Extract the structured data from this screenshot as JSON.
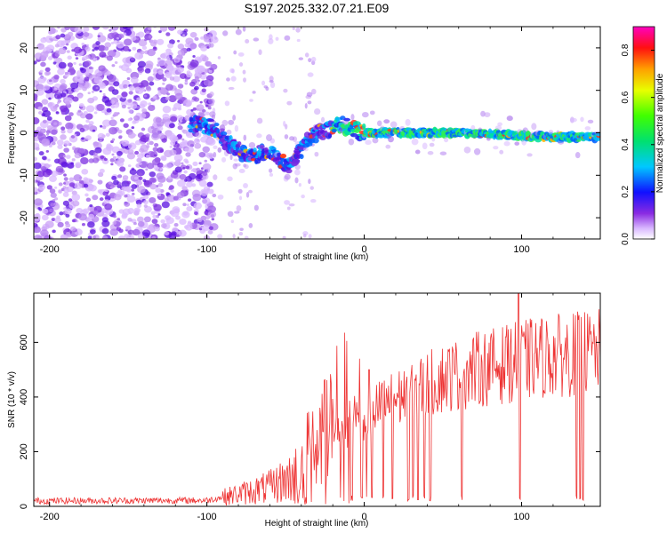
{
  "title": "S197.2025.332.07.21.E09",
  "chart_data": [
    {
      "id": "spectrogram",
      "type": "heatmap",
      "xlabel": "Height of straight line (km)",
      "ylabel": "Frequency (Hz)",
      "xlim": [
        -210,
        150
      ],
      "ylim": [
        -25,
        25
      ],
      "xticks": [
        -200,
        -100,
        0,
        100
      ],
      "yticks": [
        -20,
        -10,
        0,
        10,
        20
      ],
      "ridge": [
        {
          "x": -105,
          "y": 2
        },
        {
          "x": -95,
          "y": 1
        },
        {
          "x": -88,
          "y": -2
        },
        {
          "x": -80,
          "y": -4
        },
        {
          "x": -72,
          "y": -6
        },
        {
          "x": -62,
          "y": -4
        },
        {
          "x": -55,
          "y": -6
        },
        {
          "x": -48,
          "y": -8
        },
        {
          "x": -42,
          "y": -5
        },
        {
          "x": -36,
          "y": -2
        },
        {
          "x": -30,
          "y": 0
        },
        {
          "x": -22,
          "y": 1
        },
        {
          "x": -15,
          "y": 2
        },
        {
          "x": -8,
          "y": 1
        },
        {
          "x": 0,
          "y": 0
        },
        {
          "x": 10,
          "y": 0
        },
        {
          "x": 30,
          "y": 0
        },
        {
          "x": 60,
          "y": 0
        },
        {
          "x": 90,
          "y": -0.5
        },
        {
          "x": 120,
          "y": -1
        },
        {
          "x": 150,
          "y": -1
        }
      ],
      "colorbar": {
        "label": "Normalized spectral amplitude",
        "range": [
          0.0,
          0.9
        ],
        "ticks": [
          0.0,
          0.2,
          0.4,
          0.6,
          0.8
        ]
      }
    },
    {
      "id": "snr",
      "type": "line",
      "xlabel": "Height of straight line (km)",
      "ylabel": "SNR (10 * v/v)",
      "xlim": [
        -210,
        150
      ],
      "ylim": [
        0,
        780
      ],
      "xticks": [
        -200,
        -100,
        0,
        100
      ],
      "yticks": [
        0,
        200,
        400,
        600
      ],
      "color": "#ee3333",
      "trend": [
        {
          "x": -210,
          "y": 20
        },
        {
          "x": -100,
          "y": 22
        },
        {
          "x": -80,
          "y": 45
        },
        {
          "x": -60,
          "y": 70
        },
        {
          "x": -45,
          "y": 110
        },
        {
          "x": -35,
          "y": 190
        },
        {
          "x": -25,
          "y": 250
        },
        {
          "x": -10,
          "y": 300
        },
        {
          "x": 0,
          "y": 330
        },
        {
          "x": 15,
          "y": 380
        },
        {
          "x": 30,
          "y": 420
        },
        {
          "x": 50,
          "y": 470
        },
        {
          "x": 70,
          "y": 500
        },
        {
          "x": 90,
          "y": 520
        },
        {
          "x": 110,
          "y": 545
        },
        {
          "x": 130,
          "y": 555
        },
        {
          "x": 150,
          "y": 565
        }
      ],
      "dropouts": [
        -8,
        -2,
        5,
        12,
        18,
        28,
        31,
        34,
        38,
        42,
        62,
        99,
        135,
        137,
        139
      ],
      "spikes": [
        {
          "x": -3,
          "y": 540
        },
        {
          "x": 3,
          "y": 500
        },
        {
          "x": 98,
          "y": 790
        },
        {
          "x": 90,
          "y": 620
        }
      ]
    }
  ]
}
